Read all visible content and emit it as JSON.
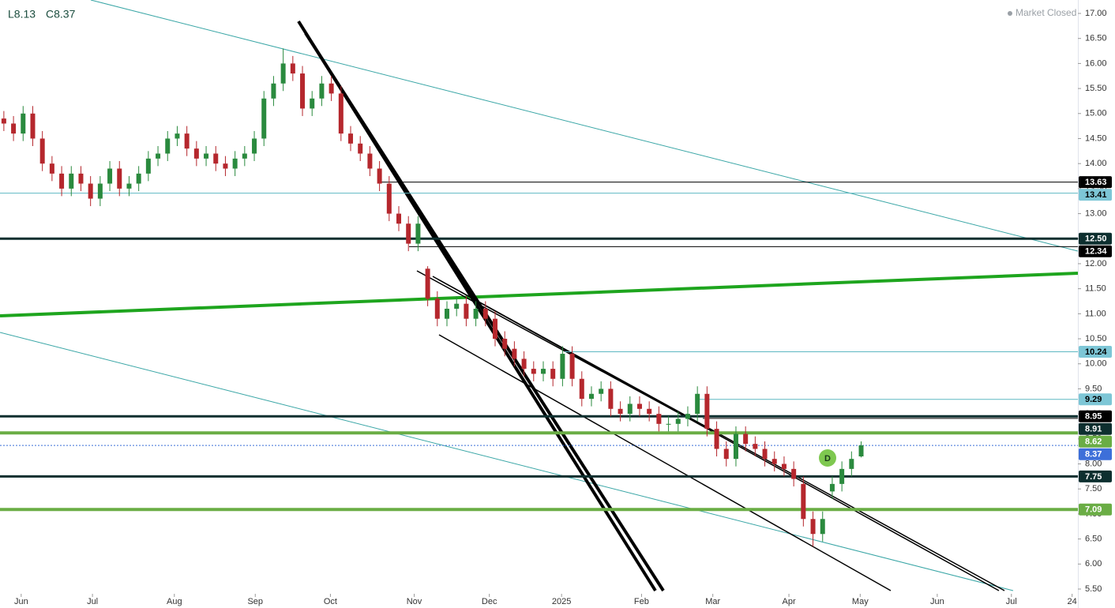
{
  "chart_data": {
    "type": "candlestick",
    "header": [
      "L8.13",
      "C8.37"
    ],
    "status": "Market Closed",
    "badge": "D",
    "up_color": "#2a8a3e",
    "down_color": "#b5272d",
    "series": {
      "open": [
        14.9,
        14.8,
        14.6,
        15.0,
        14.5,
        14.0,
        13.8,
        13.5,
        13.8,
        13.6,
        13.3,
        13.6,
        13.9,
        13.5,
        13.6,
        13.8,
        14.1,
        14.2,
        14.5,
        14.6,
        14.3,
        14.1,
        14.2,
        14.0,
        13.9,
        14.1,
        14.2,
        14.5,
        15.3,
        15.6,
        16.0,
        15.8,
        15.1,
        15.3,
        15.6,
        15.4,
        14.6,
        14.4,
        14.2,
        13.9,
        13.6,
        13.0,
        12.8,
        12.4,
        11.9,
        11.3,
        10.9,
        11.1,
        11.2,
        10.9,
        11.1,
        10.9,
        10.5,
        10.3,
        10.1,
        9.9,
        9.8,
        9.9,
        9.7,
        10.2,
        9.7,
        9.3,
        9.4,
        9.5,
        9.1,
        9.0,
        9.2,
        9.1,
        9.0,
        8.8,
        8.8,
        8.9,
        9.0,
        9.4,
        8.7,
        8.3,
        8.1,
        8.6,
        8.4,
        8.3,
        8.1,
        8.0,
        7.9,
        7.6,
        6.9,
        6.6,
        7.45,
        7.6,
        7.9,
        8.15
      ],
      "high": [
        15.05,
        14.95,
        15.15,
        15.15,
        14.65,
        14.15,
        13.95,
        13.95,
        13.95,
        13.75,
        13.75,
        14.05,
        14.05,
        13.75,
        13.95,
        14.25,
        14.35,
        14.65,
        14.75,
        14.75,
        14.45,
        14.35,
        14.35,
        14.15,
        14.25,
        14.35,
        14.65,
        15.45,
        15.75,
        16.3,
        16.15,
        15.95,
        15.45,
        15.75,
        15.75,
        15.55,
        14.75,
        14.55,
        14.35,
        14.05,
        13.75,
        13.15,
        12.95,
        12.95,
        11.95,
        11.45,
        11.25,
        11.35,
        11.35,
        11.25,
        11.25,
        11.05,
        10.65,
        10.45,
        10.25,
        10.05,
        10.05,
        10.05,
        10.35,
        10.35,
        9.85,
        9.55,
        9.65,
        9.65,
        9.25,
        9.35,
        9.35,
        9.25,
        9.15,
        8.95,
        9.05,
        9.15,
        9.55,
        9.55,
        8.85,
        8.45,
        8.75,
        8.75,
        8.55,
        8.45,
        8.25,
        8.15,
        8.05,
        7.75,
        7.05,
        7.05,
        7.75,
        8.05,
        8.25,
        8.45
      ],
      "low": [
        14.65,
        14.45,
        14.45,
        14.35,
        13.85,
        13.65,
        13.35,
        13.35,
        13.45,
        13.15,
        13.15,
        13.45,
        13.35,
        13.35,
        13.45,
        13.65,
        13.95,
        14.05,
        14.35,
        14.15,
        13.95,
        13.95,
        13.85,
        13.75,
        13.75,
        13.95,
        14.05,
        14.35,
        15.15,
        15.45,
        15.65,
        14.95,
        14.95,
        15.15,
        15.25,
        14.45,
        14.25,
        14.05,
        13.75,
        13.45,
        12.85,
        12.65,
        12.25,
        12.25,
        11.15,
        10.75,
        10.75,
        10.95,
        10.75,
        10.75,
        10.75,
        10.35,
        10.15,
        9.95,
        9.75,
        9.65,
        9.65,
        9.55,
        9.55,
        9.55,
        9.15,
        9.15,
        9.25,
        8.95,
        8.85,
        8.85,
        8.95,
        8.85,
        8.65,
        8.65,
        8.65,
        8.75,
        8.85,
        8.55,
        8.15,
        7.95,
        7.95,
        8.25,
        8.15,
        7.95,
        7.85,
        7.75,
        7.55,
        6.75,
        6.35,
        6.45,
        7.3,
        7.45,
        7.75,
        8.13
      ],
      "close": [
        14.8,
        14.6,
        15.0,
        14.5,
        14.0,
        13.8,
        13.5,
        13.8,
        13.6,
        13.3,
        13.6,
        13.9,
        13.5,
        13.6,
        13.8,
        14.1,
        14.2,
        14.5,
        14.6,
        14.3,
        14.1,
        14.2,
        14.0,
        13.9,
        14.1,
        14.2,
        14.5,
        15.3,
        15.6,
        16.0,
        15.8,
        15.1,
        15.3,
        15.6,
        15.4,
        14.6,
        14.4,
        14.2,
        13.9,
        13.6,
        13.0,
        12.8,
        12.4,
        12.8,
        11.3,
        10.9,
        11.1,
        11.2,
        10.9,
        11.1,
        10.9,
        10.5,
        10.3,
        10.1,
        9.9,
        9.8,
        9.9,
        9.7,
        10.2,
        9.7,
        9.3,
        9.4,
        9.5,
        9.1,
        9.0,
        9.2,
        9.1,
        9.0,
        8.8,
        8.8,
        8.9,
        9.0,
        9.4,
        8.7,
        8.3,
        8.1,
        8.6,
        8.4,
        8.3,
        8.1,
        8.0,
        7.9,
        7.7,
        6.9,
        6.6,
        6.9,
        7.6,
        7.9,
        8.1,
        8.37
      ]
    },
    "xlim": [
      -0.4,
      111.5
    ],
    "xticks": [
      {
        "value": 1.8,
        "label": "Jun"
      },
      {
        "value": 9.2,
        "label": "Jul"
      },
      {
        "value": 17.7,
        "label": "Aug"
      },
      {
        "value": 26.1,
        "label": "Sep"
      },
      {
        "value": 33.9,
        "label": "Oct"
      },
      {
        "value": 42.6,
        "label": "Nov"
      },
      {
        "value": 50.4,
        "label": "Dec"
      },
      {
        "value": 57.9,
        "label": "2025"
      },
      {
        "value": 66.2,
        "label": "Feb"
      },
      {
        "value": 73.6,
        "label": "Mar"
      },
      {
        "value": 81.5,
        "label": "Apr"
      },
      {
        "value": 88.9,
        "label": "May"
      },
      {
        "value": 96.9,
        "label": "Jun"
      },
      {
        "value": 104.6,
        "label": "Jul"
      },
      {
        "value": 110.9,
        "label": "24"
      }
    ],
    "ylim": [
      5.5,
      17
    ],
    "yticks": [
      {
        "value": 5.5,
        "label": "5.50"
      },
      {
        "value": 6,
        "label": "6.00"
      },
      {
        "value": 6.5,
        "label": "6.50"
      },
      {
        "value": 7,
        "label": "7.00"
      },
      {
        "value": 7.5,
        "label": "7.50"
      },
      {
        "value": 8,
        "label": "8.00"
      },
      {
        "value": 8.5,
        "label": "8.50"
      },
      {
        "value": 9,
        "label": "9.00"
      },
      {
        "value": 9.5,
        "label": "9.50"
      },
      {
        "value": 10,
        "label": "10.00"
      },
      {
        "value": 10.5,
        "label": "10.50"
      },
      {
        "value": 11,
        "label": "11.00"
      },
      {
        "value": 11.5,
        "label": "11.50"
      },
      {
        "value": 12,
        "label": "12.00"
      },
      {
        "value": 12.5,
        "label": "12.50"
      },
      {
        "value": 13,
        "label": "13.00"
      },
      {
        "value": 13.5,
        "label": "13.50"
      },
      {
        "value": 14,
        "label": "14.00"
      },
      {
        "value": 14.5,
        "label": "14.50"
      },
      {
        "value": 15,
        "label": "15.00"
      },
      {
        "value": 15.5,
        "label": "15.50"
      },
      {
        "value": 16,
        "label": "16.00"
      },
      {
        "value": 16.5,
        "label": "16.50"
      },
      {
        "value": 17,
        "label": "17.00"
      }
    ],
    "levels": [
      {
        "value": 13.63,
        "label": "13.63",
        "color": "#000000",
        "label_color": "#000000",
        "text_color": "#ffffff"
      },
      {
        "value": 13.41,
        "label": "13.41",
        "color": "#5fb8c2",
        "label_color": "#7dc6d6",
        "text_color": "#000000"
      },
      {
        "value": 12.5,
        "label": "12.50",
        "color": "#0d2f2f",
        "label_color": "#0d2f2f",
        "text_color": "#ffffff"
      },
      {
        "value": 12.34,
        "label": "12.34",
        "color": "#000000",
        "label_color": "#000000",
        "text_color": "#ffffff"
      },
      {
        "value": 10.24,
        "label": "10.24",
        "color": "#5fb8c2",
        "label_color": "#7dc6d6",
        "text_color": "#000000"
      },
      {
        "value": 9.29,
        "label": "9.29",
        "color": "#5fb8c2",
        "label_color": "#7dc6d6",
        "text_color": "#000000"
      },
      {
        "value": 8.95,
        "label": "8.95",
        "color": "#0d2f2f",
        "label_color": "#000000",
        "text_color": "#ffffff"
      },
      {
        "value": 8.91,
        "label": "8.91",
        "color": "#000000",
        "label_color": "#0d2f2f",
        "text_color": "#ffffff"
      },
      {
        "value": 8.62,
        "label": "8.62",
        "color": "#6aad45",
        "label_color": "#6aad45",
        "text_color": "#ffffff"
      },
      {
        "value": 8.37,
        "label": "8.37",
        "color": "#3a6fd8",
        "label_color": "#3d6fd9",
        "text_color": "#ffffff"
      },
      {
        "value": 7.75,
        "label": "7.75",
        "color": "#0d2f2f",
        "label_color": "#0d2f2f",
        "text_color": "#ffffff"
      },
      {
        "value": 7.09,
        "label": "7.09",
        "color": "#6aad45",
        "label_color": "#6aad45",
        "text_color": "#ffffff"
      }
    ]
  }
}
